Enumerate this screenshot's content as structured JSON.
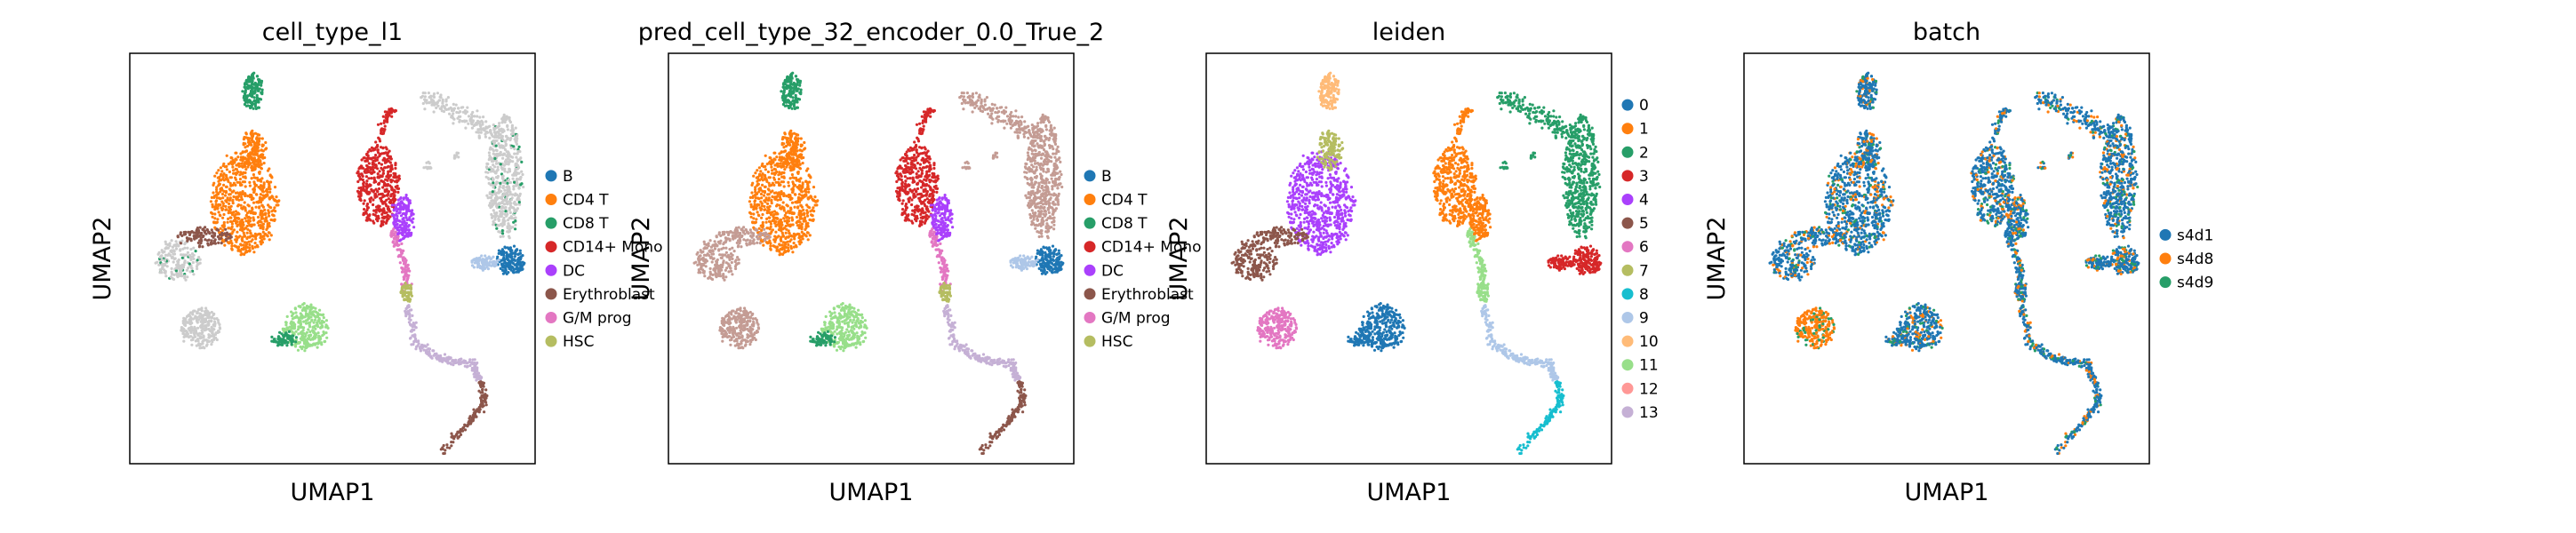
{
  "colors": {
    "B": "#1f77b4",
    "CD4 T": "#ff7f0e",
    "CD8 T": "#279e68",
    "CD14+ Mono": "#d62728",
    "DC": "#aa40fc",
    "Erythroblast": "#8c564b",
    "G/M prog": "#e377c2",
    "HSC": "#b5bd61",
    "unlabeled": "#cccccc",
    "pred_other_a": "#c49c94",
    "pred_other_b": "#98df8a",
    "pred_other_c": "#aec7e8",
    "pred_other_d": "#c5b0d5",
    "leiden": [
      "#1f77b4",
      "#ff7f0e",
      "#279e68",
      "#d62728",
      "#aa40fc",
      "#8c564b",
      "#e377c2",
      "#b5bd61",
      "#17becf",
      "#aec7e8",
      "#ffbb78",
      "#98df8a",
      "#ff9896",
      "#c5b0d5"
    ],
    "batch": [
      "#1f77b4",
      "#ff7f0e",
      "#279e68"
    ]
  },
  "chart_data": [
    {
      "type": "scatter",
      "title": "cell_type_l1",
      "xlabel": "UMAP1",
      "ylabel": "UMAP2",
      "legend": [
        "B",
        "CD4 T",
        "CD8 T",
        "CD14+ Mono",
        "DC",
        "Erythroblast",
        "G/M prog",
        "HSC"
      ],
      "legend_placement": "right"
    },
    {
      "type": "scatter",
      "title": "pred_cell_type_32_encoder_0.0_True_2",
      "xlabel": "UMAP1",
      "ylabel": "UMAP2",
      "legend": [
        "B",
        "CD4 T",
        "CD8 T",
        "CD14+ Mono",
        "DC",
        "Erythroblast",
        "G/M prog",
        "HSC"
      ],
      "legend_placement": "right"
    },
    {
      "type": "scatter",
      "title": "leiden",
      "xlabel": "UMAP1",
      "ylabel": "UMAP2",
      "legend": [
        "0",
        "1",
        "2",
        "3",
        "4",
        "5",
        "6",
        "7",
        "8",
        "9",
        "10",
        "11",
        "12",
        "13"
      ],
      "legend_placement": "right"
    },
    {
      "type": "scatter",
      "title": "batch",
      "xlabel": "UMAP1",
      "ylabel": "UMAP2",
      "legend": [
        "s4d1",
        "s4d8",
        "s4d9"
      ],
      "legend_placement": "right"
    }
  ]
}
